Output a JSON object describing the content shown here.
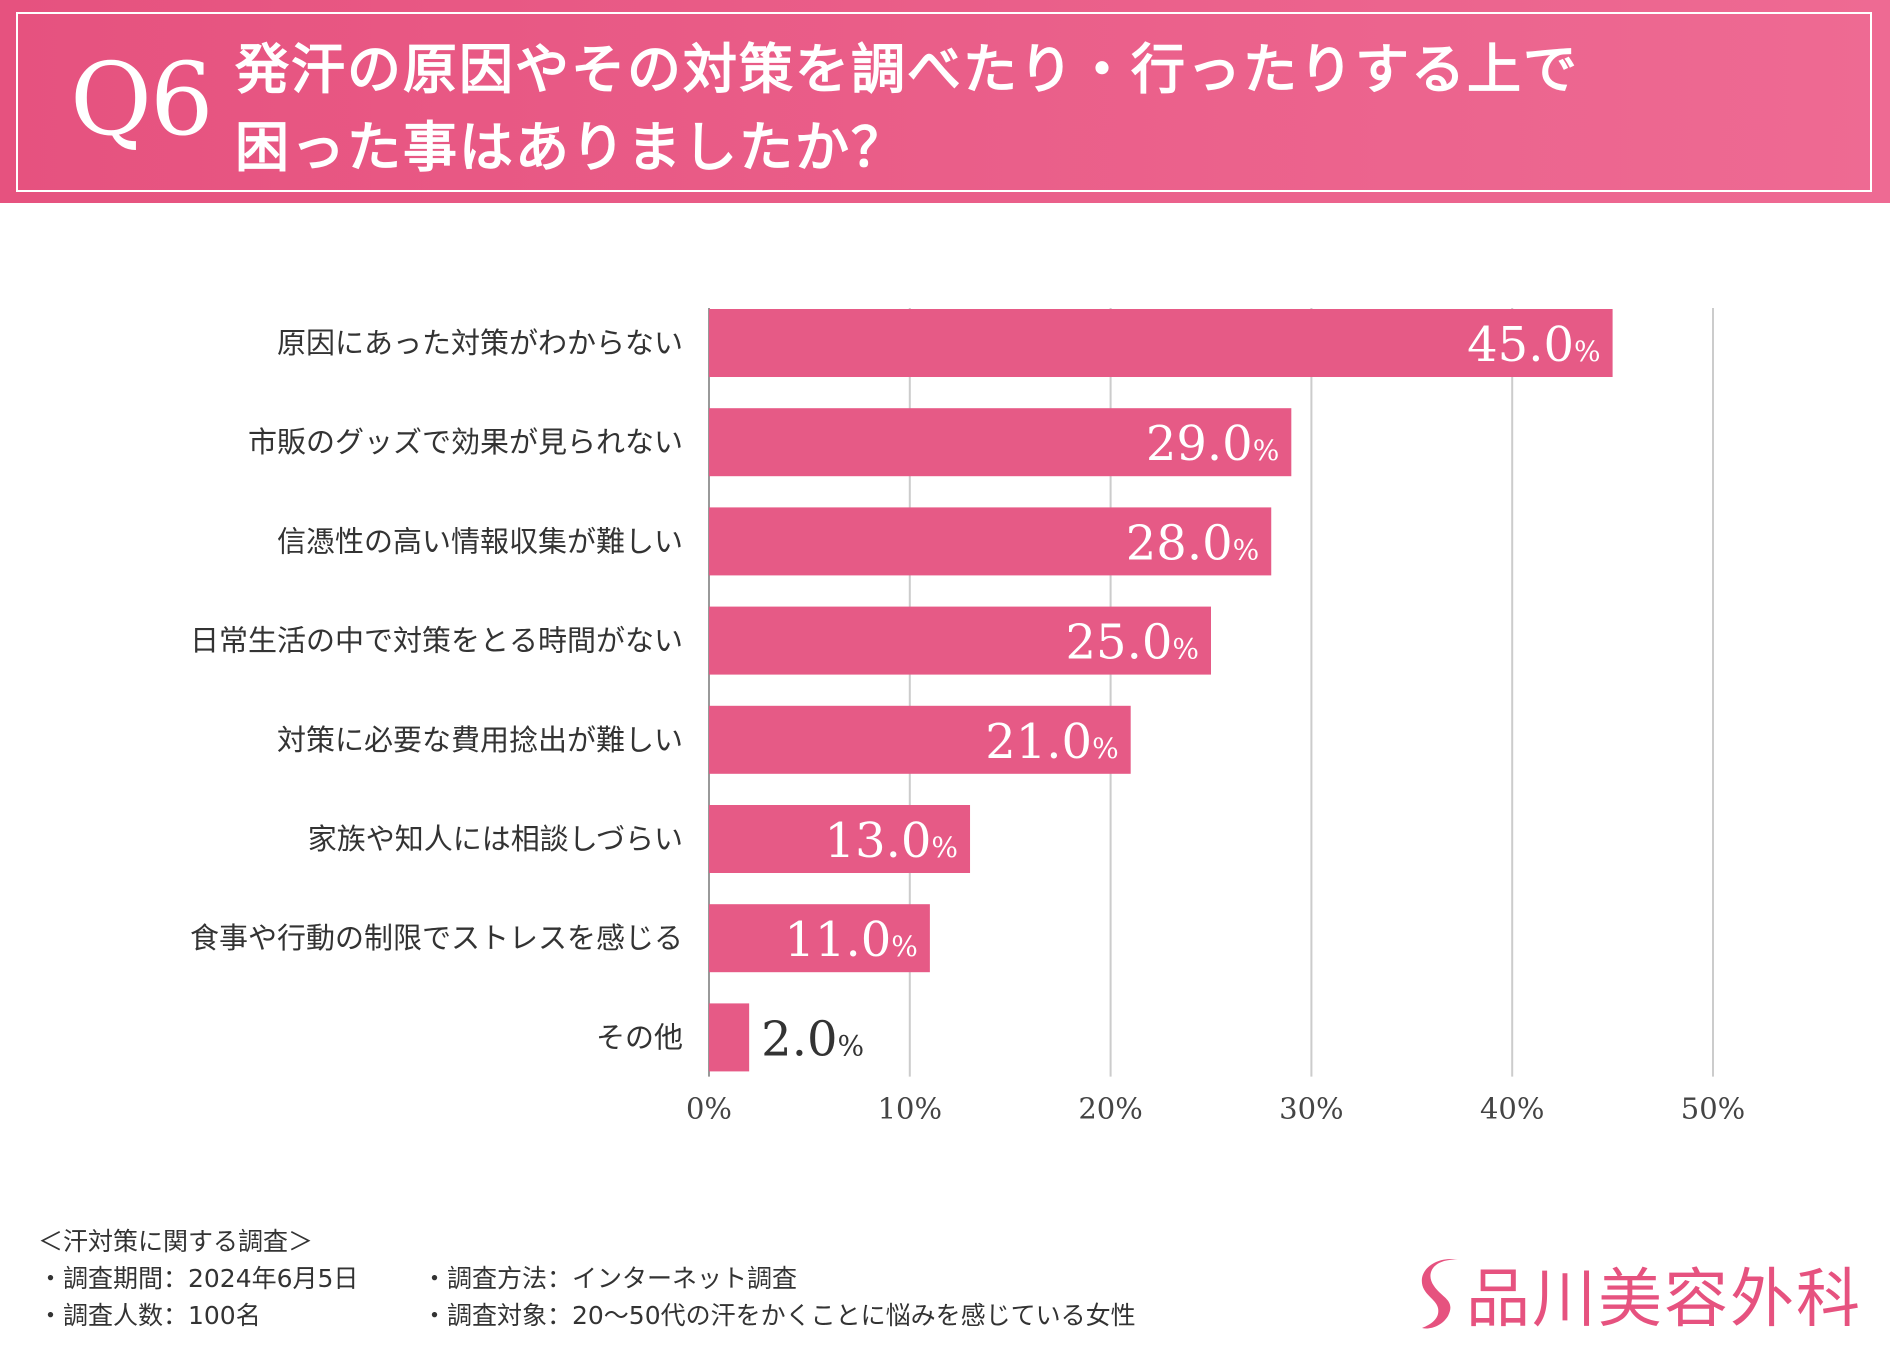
{
  "header": {
    "number": "Q6",
    "question_line1": "発汗の原因やその対策を調べたり・行ったりする上で",
    "question_line2": "困った事はありましたか？"
  },
  "colors": {
    "accent": "#e6527f",
    "bar": "#e65a86",
    "grid": "#cccccc"
  },
  "chart_data": {
    "type": "bar",
    "orientation": "horizontal",
    "categories": [
      "原因にあった対策がわからない",
      "市販のグッズで効果が見られない",
      "信憑性の高い情報収集が難しい",
      "日常生活の中で対策をとる時間がない",
      "対策に必要な費用捻出が難しい",
      "家族や知人には相談しづらい",
      "食事や行動の制限でストレスを感じる",
      "その他"
    ],
    "values": [
      45.0,
      29.0,
      28.0,
      25.0,
      21.0,
      13.0,
      11.0,
      2.0
    ],
    "value_labels": [
      "45.0",
      "29.0",
      "28.0",
      "25.0",
      "21.0",
      "13.0",
      "11.0",
      "2.0"
    ],
    "value_suffix": "%",
    "xlim": [
      0,
      50
    ],
    "xticks": [
      "0%",
      "10%",
      "20%",
      "30%",
      "40%",
      "50%"
    ],
    "grid": true,
    "title": "",
    "xlabel": "",
    "ylabel": ""
  },
  "footer": {
    "survey_title": "＜汗対策に関する調査＞",
    "period": "・調査期間：2024年6月5日",
    "method": "・調査方法：インターネット調査",
    "count": "・調査人数：100名",
    "target": "・調査対象：20～50代の汗をかくことに悩みを感じている女性"
  },
  "logo": {
    "text": "品川美容外科",
    "icon": "s-swoosh-icon"
  }
}
